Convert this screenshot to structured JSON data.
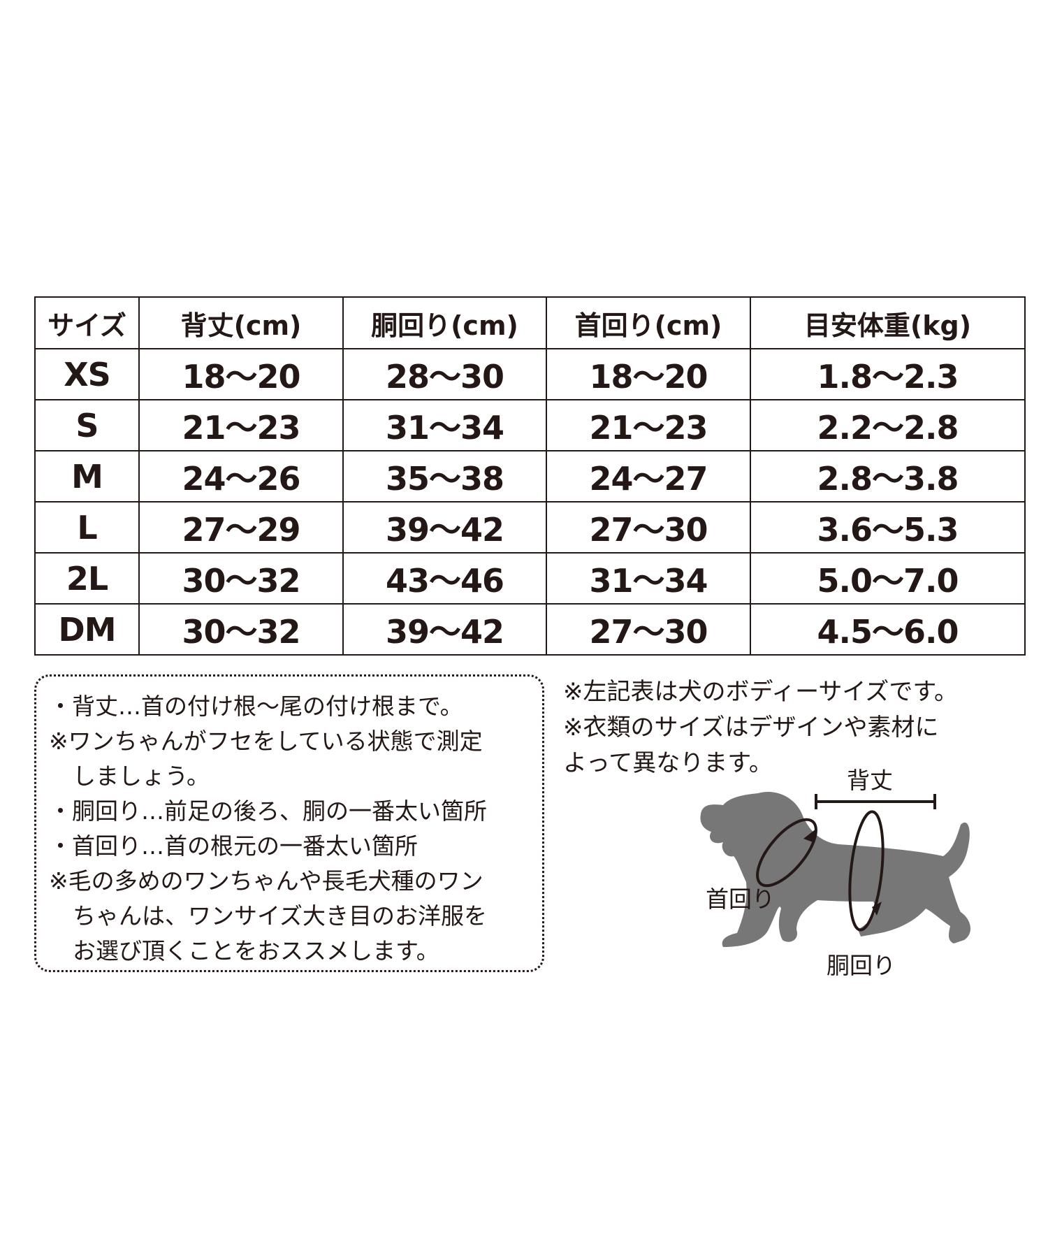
{
  "table": {
    "headers": [
      "サイズ",
      "背丈(cm)",
      "胴回り(cm)",
      "首回り(cm)",
      "目安体重(kg)"
    ],
    "rows": [
      [
        "XS",
        "18〜20",
        "28〜30",
        "18〜20",
        "1.8〜2.3"
      ],
      [
        "S",
        "21〜23",
        "31〜34",
        "21〜23",
        "2.2〜2.8"
      ],
      [
        "M",
        "24〜26",
        "35〜38",
        "24〜27",
        "2.8〜3.8"
      ],
      [
        "L",
        "27〜29",
        "39〜42",
        "27〜30",
        "3.6〜5.3"
      ],
      [
        "2L",
        "30〜32",
        "43〜46",
        "31〜34",
        "5.0〜7.0"
      ],
      [
        "DM",
        "30〜32",
        "39〜42",
        "27〜30",
        "4.5〜6.0"
      ]
    ]
  },
  "notes": [
    "・背丈…首の付け根〜尾の付け根まで。",
    "※ワンちゃんがフセをしている状態で測定",
    "しましょう。",
    "・胴回り…前足の後ろ、胴の一番太い箇所",
    "・首回り…首の根元の一番太い箇所",
    "※毛の多めのワンちゃんや長毛犬種のワン",
    "ちゃんは、ワンサイズ大き目のお洋服を",
    "お選び頂くことをおススメします。"
  ],
  "right_notes": [
    "※左記表は犬のボディーサイズです。",
    "※衣類のサイズはデザインや素材に",
    "よって異なります。"
  ],
  "diagram": {
    "back_length_label": "背丈",
    "neck_label": "首回り",
    "chest_label": "胴回り",
    "dog_color": "#777777"
  },
  "colors": {
    "text": "#231815"
  }
}
